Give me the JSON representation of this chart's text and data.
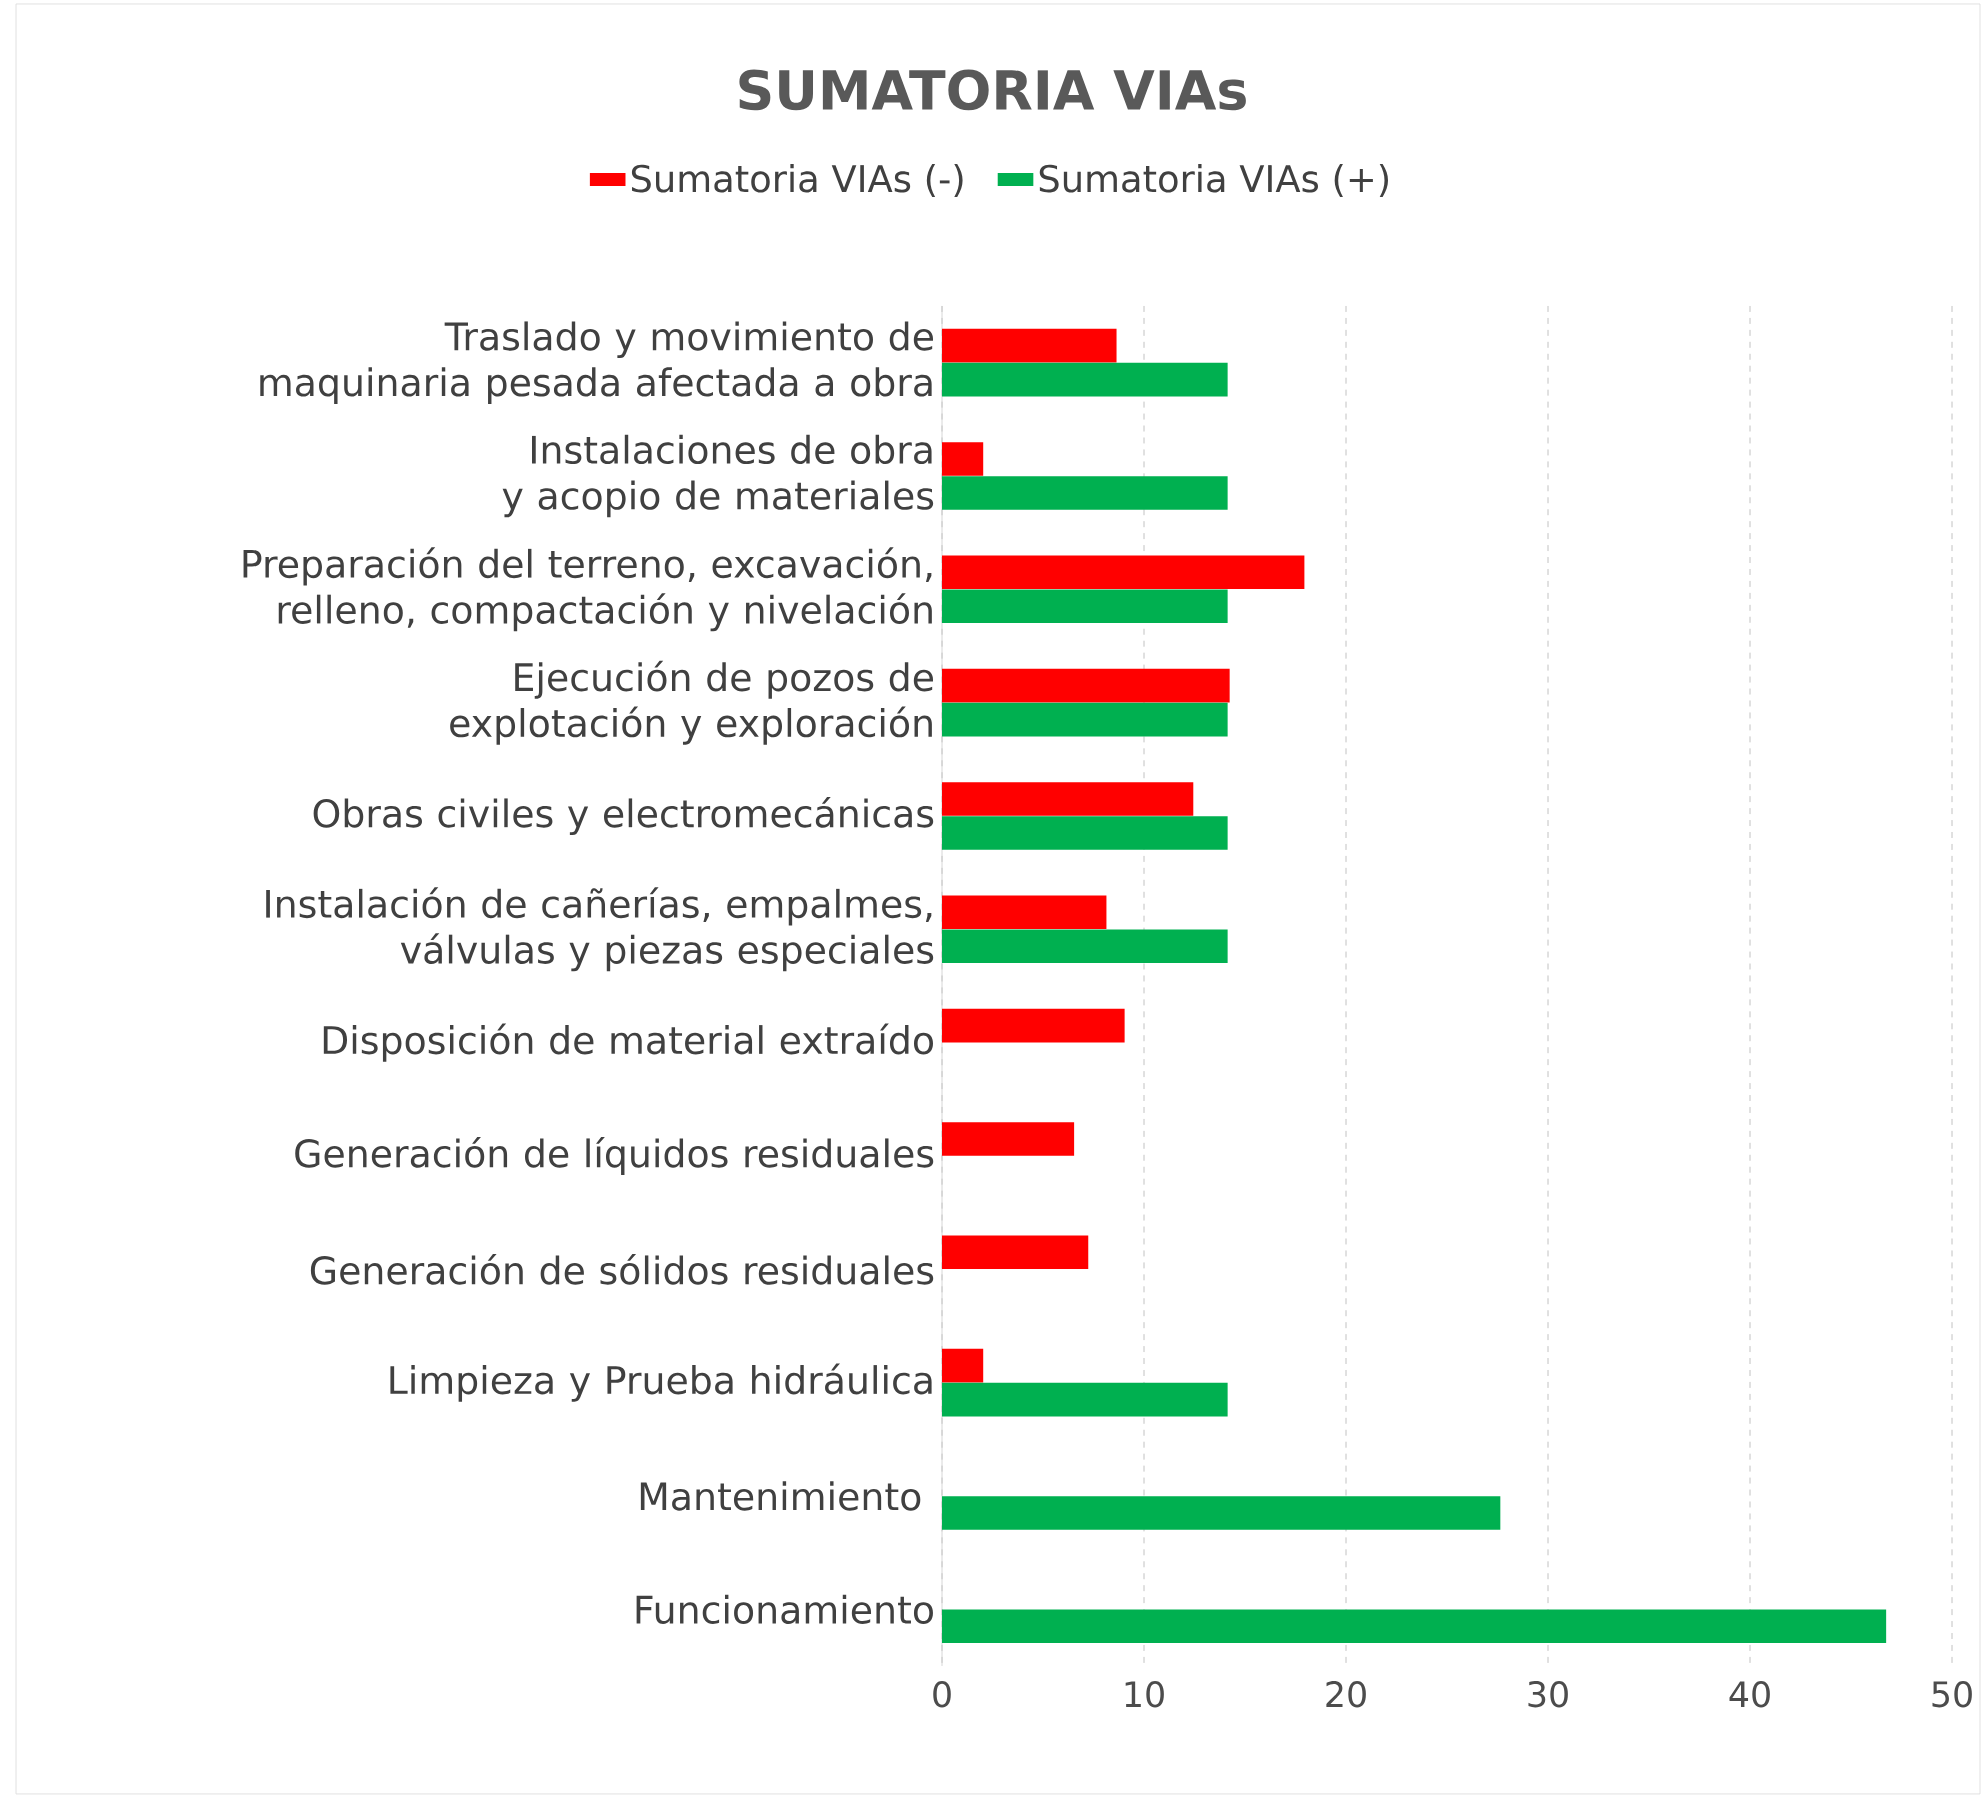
{
  "chart_data": {
    "type": "bar",
    "orientation": "horizontal",
    "title": "SUMATORIA VIAs",
    "categories": [
      "Traslado y movimiento de maquinaria pesada afectada a obra",
      "Instalaciones de obra y acopio de materiales",
      "Preparación del terreno, excavación, relleno, compactación y nivelación",
      "Ejecución de pozos de explotación y exploración",
      "Obras civiles y electromecánicas",
      "Instalación de cañerías, empalmes, válvulas y piezas especiales",
      "Disposición de material extraído",
      "Generación de líquidos residuales",
      "Generación de sólidos residuales",
      "Limpieza y Prueba hidráulica",
      "Mantenimiento ",
      "Funcionamiento"
    ],
    "series": [
      {
        "name": "Sumatoria VIAs (-)",
        "color": "#ff0000",
        "values": [
          8.6,
          2,
          17.9,
          14.2,
          12.4,
          8.1,
          9,
          6.5,
          7.2,
          2,
          null,
          null
        ]
      },
      {
        "name": "Sumatoria VIAs (+)",
        "color": "#00b050",
        "values": [
          14.1,
          14.1,
          14.1,
          14.1,
          14.1,
          14.1,
          null,
          null,
          null,
          14.1,
          27.6,
          46.7
        ]
      }
    ],
    "xlim": [
      0,
      50
    ],
    "xticks": [
      0,
      10,
      20,
      30,
      40,
      50
    ],
    "grid": "x",
    "legend": "top"
  }
}
